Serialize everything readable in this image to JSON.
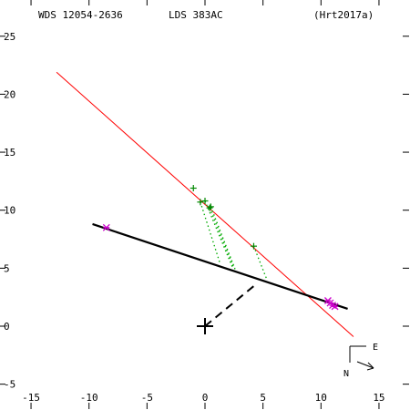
{
  "header": {
    "wds_id": "WDS 12054-2636",
    "lds_id": "LDS 383AC",
    "reference": "(Hrt2017a)"
  },
  "compass": {
    "east_label": "E",
    "north_label": "N",
    "motion_arrow_icon": "arrow-right-down"
  },
  "colors": {
    "background": "#ffffff",
    "axis": "#000000",
    "orbit_line": "#000000",
    "trend_line": "#ff0000",
    "observation": "#008800",
    "residual": "#00aa00",
    "highlight_point": "#cc00cc",
    "primary_marker": "#000000"
  },
  "chart_data": {
    "type": "scatter",
    "title": "",
    "xlabel": "",
    "ylabel": "",
    "xlim": [
      -17.7,
      17.7
    ],
    "ylim": [
      -7.3,
      27.2
    ],
    "x_ticks": [
      -15,
      -10,
      -5,
      0,
      5,
      10,
      15
    ],
    "y_ticks": [
      -5,
      0,
      5,
      10,
      15,
      20,
      25
    ],
    "grid": false,
    "primary": {
      "x": 0,
      "y": 0
    },
    "trend_line": {
      "from": [
        -12.8,
        21.9
      ],
      "to": [
        12.8,
        -0.9
      ]
    },
    "linear_orbit": {
      "from": [
        -9.7,
        8.8
      ],
      "to": [
        12.3,
        1.5
      ]
    },
    "perpendicular_dashed": {
      "from": [
        0,
        0
      ],
      "to": [
        4.5,
        3.7
      ]
    },
    "observations": [
      {
        "x": -1.0,
        "y": 11.9
      },
      {
        "x": -0.4,
        "y": 10.7
      },
      {
        "x": 0.0,
        "y": 10.8
      },
      {
        "x": 0.4,
        "y": 10.2
      },
      {
        "x": 0.5,
        "y": 10.3
      },
      {
        "x": 4.2,
        "y": 6.9
      }
    ],
    "residual_links": [
      {
        "from": [
          -0.4,
          10.7
        ],
        "to": [
          1.3,
          5.4
        ]
      },
      {
        "from": [
          0.0,
          10.8
        ],
        "to": [
          2.4,
          5.0
        ]
      },
      {
        "from": [
          0.4,
          10.2
        ],
        "to": [
          2.5,
          5.0
        ]
      },
      {
        "from": [
          0.5,
          10.3
        ],
        "to": [
          2.6,
          4.9
        ]
      },
      {
        "from": [
          4.2,
          6.9
        ],
        "to": [
          5.3,
          4.1
        ]
      }
    ],
    "highlighted": [
      {
        "x": -8.5,
        "y": 8.5
      },
      {
        "x": 10.6,
        "y": 2.2
      },
      {
        "x": 10.8,
        "y": 2.0
      },
      {
        "x": 11.0,
        "y": 1.8
      },
      {
        "x": 11.2,
        "y": 1.7
      }
    ]
  }
}
